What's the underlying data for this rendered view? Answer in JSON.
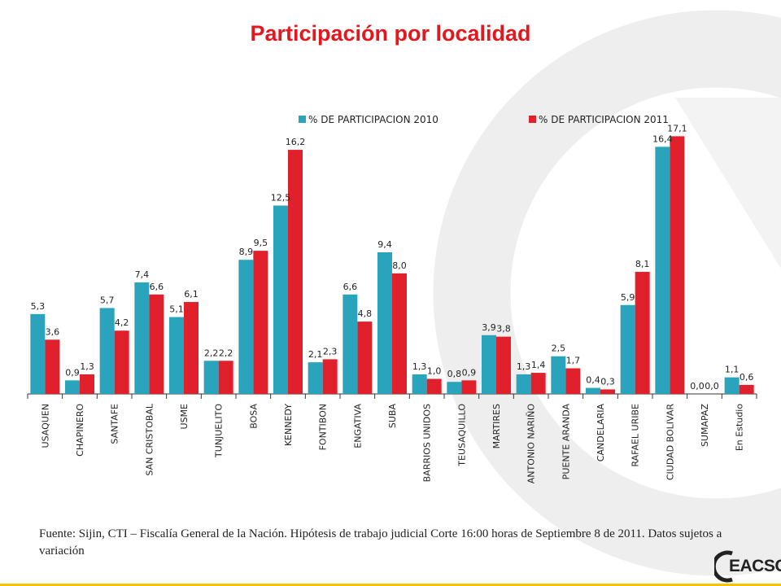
{
  "title": "Participación por localidad",
  "source_note": "Fuente: Sijin,  CTI – Fiscalía General de la Nación.  Hipótesis de trabajo judicial  Corte 16:00 horas de  Septiembre 8 de  2011.  Datos sujetos a variación",
  "logo_text": "EACSC",
  "colors": {
    "series_2010": "#2aa4bd",
    "series_2011": "#e0212b",
    "title": "#e3181e",
    "accent_bar": "#f5c400"
  },
  "chart_data": {
    "type": "bar",
    "categories": [
      "USAQUEN",
      "CHAPINERO",
      "SANTAFE",
      "SAN CRISTOBAL",
      "USME",
      "TUNJUELITO",
      "BOSA",
      "KENNEDY",
      "FONTIBON",
      "ENGATIVA",
      "SUBA",
      "BARRIOS UNIDOS",
      "TEUSAQUILLO",
      "MARTIRES",
      "ANTONIO NARIÑO",
      "PUENTE ARANDA",
      "CANDELARIA",
      "RAFAEL URIBE",
      "CIUDAD BOLIVAR",
      "SUMAPAZ",
      "En Estudio"
    ],
    "series": [
      {
        "name": "% DE PARTICIPACION 2010",
        "values": [
          5.3,
          0.9,
          5.7,
          7.4,
          5.1,
          2.2,
          8.9,
          12.5,
          2.1,
          6.6,
          9.4,
          1.3,
          0.8,
          3.9,
          1.3,
          2.5,
          0.4,
          5.9,
          16.4,
          0.0,
          1.1
        ],
        "labels": [
          "5,3",
          "0,9",
          "5,7",
          "7,4",
          "5,1",
          "2,2",
          "8,9",
          "12,5",
          "2,1",
          "6,6",
          "9,4",
          "1,3",
          "0,8",
          "3,9",
          "1,3",
          "2,5",
          "0,4",
          "5,9",
          "16,4",
          "0,0",
          "1,1"
        ]
      },
      {
        "name": "% DE PARTICIPACION 2011",
        "values": [
          3.6,
          1.3,
          4.2,
          6.6,
          6.1,
          2.2,
          9.5,
          16.2,
          2.3,
          4.8,
          8.0,
          1.0,
          0.9,
          3.8,
          1.4,
          1.7,
          0.3,
          8.1,
          17.1,
          0.0,
          0.6
        ],
        "labels": [
          "3,6",
          "1,3",
          "4,2",
          "6,6",
          "6,1",
          "2,2",
          "9,5",
          "16,2",
          "2,3",
          "4,8",
          "8,0",
          "1,0",
          "0,9",
          "3,8",
          "1,4",
          "1,7",
          "0,3",
          "8,1",
          "17,1",
          "0,0",
          "0,6"
        ]
      }
    ],
    "legend_position": "top",
    "grid": false,
    "ylim": [
      0,
      17.5
    ]
  }
}
